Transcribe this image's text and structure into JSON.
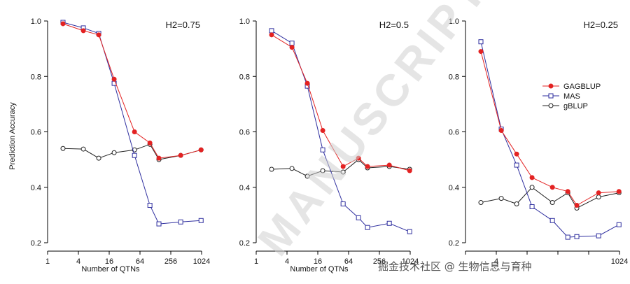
{
  "chart_data": [
    {
      "type": "line",
      "title": "H2=0.75",
      "xlabel": "Number of QTNs",
      "ylabel": "Prediction Accuracy",
      "x_scale": "log2",
      "xlim": [
        1,
        1024
      ],
      "ylim": [
        0.2,
        1.0
      ],
      "xticks": [
        1,
        4,
        16,
        64,
        256,
        1024
      ],
      "xtick_labels": [
        "1",
        "4",
        "16",
        "64",
        "256",
        "1024"
      ],
      "yticks": [
        0.2,
        0.4,
        0.6,
        0.8,
        1.0
      ],
      "ytick_labels": [
        "0.2",
        "0.4",
        "0.6",
        "0.8",
        "1.0"
      ],
      "x": [
        2,
        5,
        10,
        20,
        50,
        100,
        150,
        400,
        1000
      ],
      "series": [
        {
          "name": "GAGBLUP",
          "values": [
            0.99,
            0.965,
            0.95,
            0.79,
            0.6,
            0.56,
            0.505,
            0.515,
            0.535
          ]
        },
        {
          "name": "MAS",
          "values": [
            0.995,
            0.975,
            0.955,
            0.775,
            0.515,
            0.335,
            0.268,
            0.275,
            0.28
          ]
        },
        {
          "name": "gBLUP",
          "values": [
            0.54,
            0.538,
            0.505,
            0.525,
            0.535,
            0.555,
            0.5,
            0.515,
            0.535
          ]
        }
      ]
    },
    {
      "type": "line",
      "title": "H2=0.5",
      "xlabel": "Number of QTNs",
      "ylabel": "",
      "x_scale": "log2",
      "xlim": [
        1,
        1024
      ],
      "ylim": [
        0.2,
        1.0
      ],
      "xticks": [
        1,
        4,
        16,
        64,
        256,
        1024
      ],
      "xtick_labels": [
        "1",
        "4",
        "16",
        "64",
        "256",
        "1024"
      ],
      "yticks": [
        0.2,
        0.4,
        0.6,
        0.8,
        1.0
      ],
      "ytick_labels": [
        "0.2",
        "0.4",
        "0.6",
        "0.8",
        "1.0"
      ],
      "x": [
        2,
        5,
        10,
        20,
        50,
        100,
        150,
        400,
        1000
      ],
      "series": [
        {
          "name": "GAGBLUP",
          "values": [
            0.95,
            0.905,
            0.775,
            0.605,
            0.475,
            0.505,
            0.475,
            0.48,
            0.46
          ]
        },
        {
          "name": "MAS",
          "values": [
            0.965,
            0.92,
            0.765,
            0.535,
            0.34,
            0.29,
            0.255,
            0.27,
            0.24
          ]
        },
        {
          "name": "gBLUP",
          "values": [
            0.465,
            0.468,
            0.44,
            0.46,
            0.455,
            0.5,
            0.47,
            0.475,
            0.465
          ]
        }
      ]
    },
    {
      "type": "line",
      "title": "H2=0.25",
      "xlabel": "",
      "ylabel": "",
      "x_scale": "log2",
      "xlim": [
        1,
        1024
      ],
      "ylim": [
        0.2,
        1.0
      ],
      "xticks": [
        1,
        4,
        16,
        64,
        256,
        1024
      ],
      "xtick_labels": [
        "",
        "4",
        "",
        "",
        "",
        "1024"
      ],
      "yticks": [
        0.2,
        0.4,
        0.6,
        0.8,
        1.0
      ],
      "ytick_labels": [
        "0.2",
        "0.4",
        "0.6",
        "0.8",
        "1.0"
      ],
      "x": [
        2,
        5,
        10,
        20,
        50,
        100,
        150,
        400,
        1000
      ],
      "series": [
        {
          "name": "GAGBLUP",
          "values": [
            0.89,
            0.605,
            0.52,
            0.435,
            0.4,
            0.385,
            0.335,
            0.38,
            0.385
          ]
        },
        {
          "name": "MAS",
          "values": [
            0.925,
            0.61,
            0.48,
            0.33,
            0.28,
            0.22,
            0.222,
            0.225,
            0.265
          ]
        },
        {
          "name": "gBLUP",
          "values": [
            0.345,
            0.36,
            0.34,
            0.4,
            0.345,
            0.38,
            0.325,
            0.365,
            0.38
          ]
        }
      ],
      "legend": {
        "position": "right",
        "entries": [
          "GAGBLUP",
          "MAS",
          "gBLUP"
        ]
      }
    }
  ],
  "colors": {
    "GAGBLUP": "#e32222",
    "MAS": "#2f2f9f",
    "gBLUP": "#222222",
    "gagblup_fill": "#e32222",
    "mas_fill": "#ffffff",
    "gblup_fill": "#ffffff"
  },
  "overlay": {
    "manuscript_watermark": "MANUSCRIPT",
    "platform_watermark": "掘金技术社区 @ 生物信息与育种"
  }
}
